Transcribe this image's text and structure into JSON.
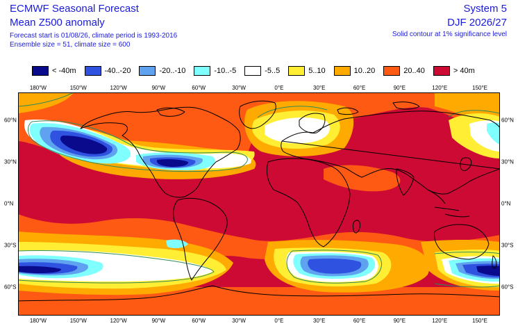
{
  "header": {
    "title": "ECMWF Seasonal Forecast",
    "subtitle": "Mean Z500 anomaly",
    "info_line1": "Forecast start is 01/08/26, climate period is 1993-2016",
    "info_line2": "Ensemble size = 51, climate size = 600",
    "system": "System 5",
    "period": "DJF 2026/27",
    "contour_note": "Solid contour at 1% significance level"
  },
  "legend": [
    {
      "label": "< -40m",
      "color": "#0a0a8c"
    },
    {
      "label": "-40..-20",
      "color": "#2f52e0"
    },
    {
      "label": "-20..-10",
      "color": "#5fa3f0"
    },
    {
      "label": "-10..-5",
      "color": "#80ffff"
    },
    {
      "label": "-5..5",
      "color": "#ffffff"
    },
    {
      "label": "5..10",
      "color": "#ffee33"
    },
    {
      "label": "10..20",
      "color": "#ffaa00"
    },
    {
      "label": "20..40",
      "color": "#ff5a14"
    },
    {
      "label": "> 40m",
      "color": "#cc0a33"
    }
  ],
  "axes": {
    "lon_labels": [
      "180°W",
      "150°W",
      "120°W",
      "90°W",
      "60°W",
      "30°W",
      "0°E",
      "30°E",
      "60°E",
      "90°E",
      "120°E",
      "150°E"
    ],
    "lat_labels": [
      "60°N",
      "30°N",
      "0°N",
      "30°S",
      "60°S"
    ]
  },
  "colors": {
    "contour": "#2e8b57",
    "coast": "#000000",
    "text": "#1a1adc"
  }
}
